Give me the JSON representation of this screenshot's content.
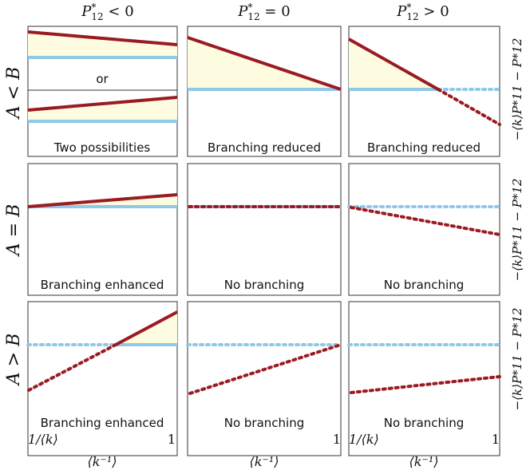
{
  "columns": [
    {
      "label": "P*12 < 0"
    },
    {
      "label": "P*12 = 0"
    },
    {
      "label": "P*12 > 0"
    }
  ],
  "rows": [
    {
      "label": "A < B"
    },
    {
      "label": "A = B"
    },
    {
      "label": "A > B"
    }
  ],
  "right_axis_label": "−⟨k⟩P*11 − P*12",
  "x_tick_left": "1/⟨k⟩",
  "x_tick_right": "1",
  "x_axis_label": "⟨k⁻¹⟩",
  "captions": [
    [
      "Two possibilities",
      "Branching reduced",
      "Branching reduced"
    ],
    [
      "Branching enhanced",
      "No branching",
      "No branching"
    ],
    [
      "Branching enhanced",
      "No branching",
      "No branching"
    ]
  ],
  "or_label": "or",
  "colors": {
    "red_line": "#9b1b22",
    "blue_line": "#8ec9e8",
    "fill": "#fdfbe0",
    "frame": "#333333"
  }
}
